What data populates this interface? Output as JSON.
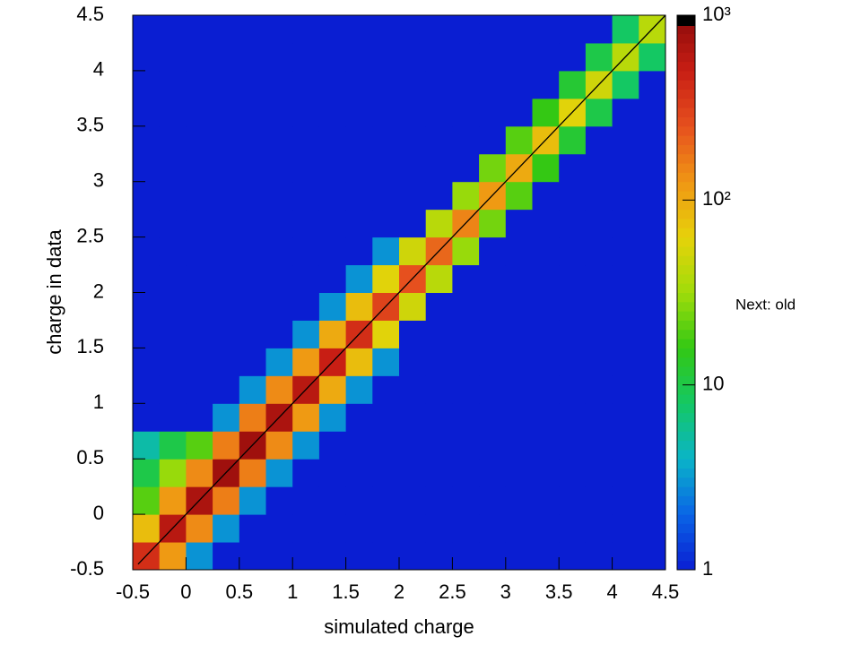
{
  "chart_data": {
    "type": "heatmap",
    "x_label": "simulated charge",
    "y_label": "charge in data",
    "annotation": "Next: old",
    "xlim": [
      -0.5,
      4.5
    ],
    "ylim": [
      -0.5,
      4.5
    ],
    "xticks": [
      -0.5,
      0,
      0.5,
      1,
      1.5,
      2,
      2.5,
      3,
      3.5,
      4,
      4.5
    ],
    "yticks": [
      -0.5,
      0,
      0.5,
      1,
      1.5,
      2,
      2.5,
      3,
      3.5,
      4,
      4.5
    ],
    "xbins": [
      -0.5,
      -0.25,
      0,
      0.25,
      0.5,
      0.75,
      1,
      1.25,
      1.5,
      1.75,
      2,
      2.25,
      2.5,
      2.75,
      3,
      3.25,
      3.5,
      3.75,
      4,
      4.25,
      4.5
    ],
    "ybins": [
      -0.5,
      -0.25,
      0,
      0.25,
      0.5,
      0.75,
      1,
      1.25,
      1.5,
      1.75,
      2,
      2.25,
      2.5,
      2.75,
      3,
      3.25,
      3.5,
      3.75,
      4,
      4.25,
      4.5
    ],
    "counts": [
      [
        400,
        120,
        3,
        0,
        0,
        0,
        0,
        0,
        0,
        0,
        0,
        0,
        0,
        0,
        0,
        0,
        0,
        0,
        0,
        0
      ],
      [
        80,
        600,
        140,
        3,
        0,
        0,
        0,
        0,
        0,
        0,
        0,
        0,
        0,
        0,
        0,
        0,
        0,
        0,
        0,
        0
      ],
      [
        20,
        120,
        700,
        160,
        3,
        0,
        0,
        0,
        0,
        0,
        0,
        0,
        0,
        0,
        0,
        0,
        0,
        0,
        0,
        0
      ],
      [
        10,
        30,
        140,
        800,
        160,
        3,
        0,
        0,
        0,
        0,
        0,
        0,
        0,
        0,
        0,
        0,
        0,
        0,
        0,
        0
      ],
      [
        5,
        10,
        20,
        160,
        800,
        140,
        3,
        0,
        0,
        0,
        0,
        0,
        0,
        0,
        0,
        0,
        0,
        0,
        0,
        0
      ],
      [
        0,
        0,
        0,
        3,
        160,
        700,
        120,
        3,
        0,
        0,
        0,
        0,
        0,
        0,
        0,
        0,
        0,
        0,
        0,
        0
      ],
      [
        0,
        0,
        0,
        0,
        3,
        140,
        600,
        100,
        3,
        0,
        0,
        0,
        0,
        0,
        0,
        0,
        0,
        0,
        0,
        0
      ],
      [
        0,
        0,
        0,
        0,
        0,
        3,
        120,
        500,
        80,
        3,
        0,
        0,
        0,
        0,
        0,
        0,
        0,
        0,
        0,
        0
      ],
      [
        0,
        0,
        0,
        0,
        0,
        0,
        3,
        100,
        400,
        60,
        1,
        0,
        0,
        0,
        0,
        0,
        0,
        0,
        0,
        0
      ],
      [
        0,
        0,
        0,
        0,
        0,
        0,
        0,
        3,
        80,
        300,
        50,
        1,
        0,
        0,
        0,
        0,
        0,
        0,
        0,
        0
      ],
      [
        0,
        0,
        0,
        0,
        0,
        0,
        0,
        0,
        3,
        60,
        250,
        40,
        1,
        0,
        0,
        0,
        0,
        0,
        0,
        0
      ],
      [
        0,
        0,
        0,
        0,
        0,
        0,
        0,
        0,
        0,
        3,
        50,
        200,
        30,
        1,
        0,
        0,
        0,
        0,
        0,
        0
      ],
      [
        0,
        0,
        0,
        0,
        0,
        0,
        0,
        0,
        0,
        0,
        1,
        40,
        150,
        24,
        1,
        0,
        0,
        0,
        0,
        0
      ],
      [
        0,
        0,
        0,
        0,
        0,
        0,
        0,
        0,
        0,
        0,
        0,
        1,
        30,
        120,
        20,
        1,
        0,
        0,
        0,
        0
      ],
      [
        0,
        0,
        0,
        0,
        0,
        0,
        0,
        0,
        0,
        0,
        0,
        0,
        1,
        24,
        100,
        16,
        1,
        0,
        0,
        0
      ],
      [
        0,
        0,
        0,
        0,
        0,
        0,
        0,
        0,
        0,
        0,
        0,
        0,
        0,
        1,
        20,
        80,
        12,
        1,
        0,
        0
      ],
      [
        0,
        0,
        0,
        0,
        0,
        0,
        0,
        0,
        0,
        0,
        0,
        0,
        0,
        0,
        1,
        16,
        60,
        10,
        1,
        0
      ],
      [
        0,
        0,
        0,
        0,
        0,
        0,
        0,
        0,
        0,
        0,
        0,
        0,
        0,
        0,
        0,
        1,
        12,
        50,
        8,
        1
      ],
      [
        0,
        0,
        0,
        0,
        0,
        0,
        0,
        0,
        0,
        0,
        0,
        0,
        0,
        0,
        0,
        0,
        1,
        10,
        40,
        8
      ],
      [
        0,
        0,
        0,
        0,
        0,
        0,
        0,
        0,
        0,
        0,
        0,
        0,
        0,
        0,
        0,
        0,
        0,
        1,
        8,
        40
      ]
    ],
    "fit_line": {
      "x": [
        -0.45,
        4.5
      ],
      "y": [
        -0.45,
        4.5
      ],
      "color": "#000000"
    },
    "zlim": [
      1,
      1000
    ],
    "zlog": true,
    "zticks": [
      1,
      10,
      {
        "value": 100,
        "label": "10²"
      },
      {
        "value": 1000,
        "label": "10³"
      }
    ],
    "colormap": [
      "#0a1ed2",
      "#0a64e6",
      "#0ab4c8",
      "#14c864",
      "#32c814",
      "#a0dc0a",
      "#e6d20a",
      "#f09614",
      "#e6501e",
      "#c81e14",
      "#8c0a0a"
    ],
    "overflow_color": "#000000"
  }
}
